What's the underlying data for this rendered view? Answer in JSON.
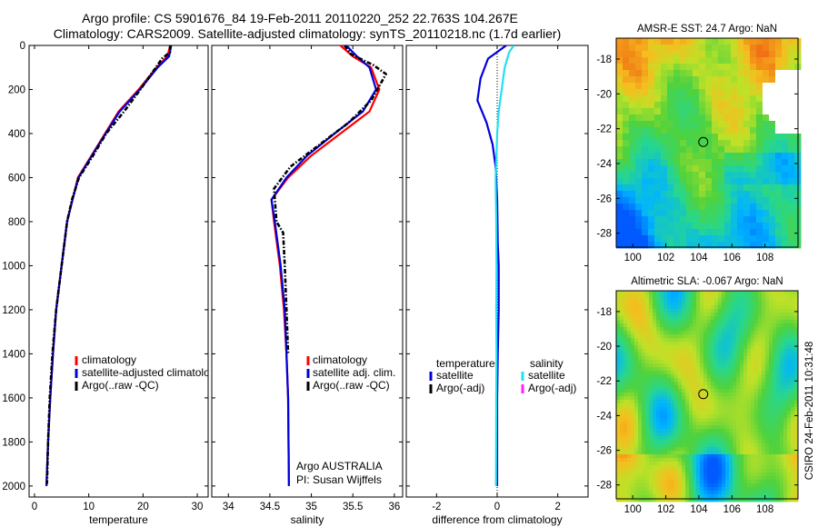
{
  "title": {
    "line1": "Argo profile: CS 5901676_84 19-Feb-2011 20110220_252 22.763S 104.267E",
    "line2": "Climatology: CARS2009. Satellite-adjusted climatology: synTS_20110218.nc (1.7d earlier)"
  },
  "stamp": "CSIRO 24-Feb-2011 10:31:48",
  "colors": {
    "climatology": "#ff0000",
    "satellite": "#0000dd",
    "argo": "#000000",
    "satellite_salinity": "#22e0f0",
    "argo_salinity_adj": "#ff22ff"
  },
  "chart_data": [
    {
      "type": "line",
      "name": "temperature-profile",
      "xlabel": "temperature",
      "ylabel": "",
      "xlim": [
        -1,
        32
      ],
      "ylim": [
        2050,
        0
      ],
      "xticks": [
        0,
        10,
        20,
        30
      ],
      "yticks": [
        0,
        200,
        400,
        600,
        800,
        1000,
        1200,
        1400,
        1600,
        1800,
        2000
      ],
      "series": [
        {
          "name": "climatology",
          "color": "#ff0000",
          "dash": "",
          "x": [
            25.0,
            24.5,
            22.5,
            19.2,
            15.5,
            13.0,
            10.5,
            8.0,
            7.0,
            6.0,
            5.0,
            4.0,
            3.4,
            2.9,
            2.5,
            2.2
          ],
          "y": [
            0,
            50,
            100,
            200,
            300,
            400,
            500,
            600,
            700,
            800,
            1000,
            1200,
            1400,
            1600,
            1800,
            2000
          ]
        },
        {
          "name": "satellite-adjusted climatology",
          "color": "#0000dd",
          "dash": "",
          "x": [
            25.2,
            24.8,
            22.7,
            19.4,
            15.7,
            13.1,
            10.6,
            8.1,
            7.0,
            6.0,
            5.0,
            4.0,
            3.4,
            2.9,
            2.5,
            2.2
          ],
          "y": [
            0,
            50,
            100,
            200,
            300,
            400,
            500,
            600,
            700,
            800,
            1000,
            1200,
            1400,
            1600,
            1800,
            2000
          ]
        },
        {
          "name": "Argo(..raw -QC)",
          "color": "#000000",
          "dash": "5,2,1.5,2",
          "x": [
            25.0,
            25.0,
            23.5,
            21.8,
            19.5,
            16.5,
            13.2,
            10.8,
            8.2,
            6.9,
            6.0,
            5.0,
            4.0,
            3.3,
            2.8,
            2.5,
            2.3
          ],
          "y": [
            0,
            30,
            60,
            120,
            200,
            300,
            400,
            500,
            600,
            700,
            800,
            1000,
            1200,
            1400,
            1600,
            1800,
            1990
          ]
        }
      ],
      "legend": [
        "climatology",
        "satellite-adjusted climatology",
        "Argo(..raw -QC)"
      ]
    },
    {
      "type": "line",
      "name": "salinity-profile",
      "xlabel": "salinity",
      "ylabel": "",
      "xlim": [
        33.8,
        36.1
      ],
      "ylim": [
        2050,
        0
      ],
      "xticks": [
        34,
        34.5,
        35,
        35.5,
        36
      ],
      "annotations": [
        "Argo AUSTRALIA",
        "PI: Susan Wijffels"
      ],
      "series": [
        {
          "name": "climatology",
          "color": "#ff0000",
          "dash": "",
          "x": [
            35.35,
            35.5,
            35.72,
            35.82,
            35.7,
            35.35,
            35.0,
            34.72,
            34.52,
            34.55,
            34.62,
            34.67,
            34.7,
            34.72,
            34.73
          ],
          "y": [
            0,
            50,
            100,
            200,
            300,
            400,
            500,
            600,
            700,
            800,
            1000,
            1200,
            1400,
            1600,
            2000
          ]
        },
        {
          "name": "satellite adj. clim.",
          "color": "#0000dd",
          "dash": "",
          "x": [
            35.42,
            35.55,
            35.7,
            35.78,
            35.62,
            35.28,
            34.95,
            34.7,
            34.52,
            34.56,
            34.63,
            34.68,
            34.7,
            34.72,
            34.73
          ],
          "y": [
            0,
            50,
            100,
            200,
            300,
            400,
            500,
            600,
            700,
            800,
            1000,
            1200,
            1400,
            1600,
            2000
          ]
        },
        {
          "name": "Argo(..raw -QC)",
          "color": "#000000",
          "dash": "5,2,1.5,2",
          "x": [
            35.4,
            35.48,
            35.75,
            35.9,
            35.72,
            35.45,
            35.1,
            34.75,
            34.55,
            34.58,
            34.66,
            34.68,
            34.7,
            34.72
          ],
          "y": [
            0,
            40,
            90,
            130,
            250,
            350,
            450,
            550,
            650,
            800,
            850,
            1000,
            1200,
            1400
          ]
        }
      ],
      "legend": [
        "climatology",
        "satellite adj. clim.",
        "Argo(..raw -QC)"
      ]
    },
    {
      "type": "line",
      "name": "difference-profile",
      "xlabel": "difference from climatology",
      "ylabel": "",
      "xlim": [
        -3,
        3
      ],
      "ylim": [
        2050,
        0
      ],
      "xticks": [
        -2,
        0,
        2
      ],
      "zero_line": true,
      "legend_headers": [
        "temperature",
        "salinity"
      ],
      "series": [
        {
          "name": "satellite",
          "group": "temperature",
          "color": "#0000dd",
          "dash": "",
          "x": [
            0.3,
            -0.3,
            -0.55,
            -0.65,
            -0.35,
            -0.15,
            -0.05,
            0,
            0.02,
            0.05,
            0.05,
            0.02,
            0,
            0
          ],
          "y": [
            0,
            60,
            150,
            250,
            350,
            450,
            550,
            700,
            900,
            1000,
            1200,
            1400,
            1600,
            2000
          ]
        },
        {
          "name": "satellite",
          "group": "salinity",
          "color": "#22e0f0",
          "dash": "",
          "x": [
            0.55,
            0.4,
            0.25,
            0.15,
            0.05,
            0,
            -0.02,
            -0.05,
            -0.03,
            -0.02,
            -0.03,
            -0.02,
            -0.03,
            -0.04
          ],
          "y": [
            0,
            30,
            100,
            200,
            300,
            400,
            500,
            600,
            800,
            1000,
            1200,
            1400,
            1600,
            2000
          ]
        }
      ],
      "legend": [
        {
          "label": "satellite",
          "group": "temperature"
        },
        {
          "label": "Argo(-adj)",
          "group": "temperature"
        },
        {
          "label": "satellite",
          "group": "salinity"
        },
        {
          "label": "Argo(-adj)",
          "group": "salinity"
        }
      ]
    },
    {
      "type": "heatmap",
      "name": "sst-map",
      "title": "AMSR-E SST: 24.7  Argo: NaN",
      "xlim": [
        99,
        110
      ],
      "ylim": [
        -28.8,
        -16.8
      ],
      "xticks": [
        100,
        102,
        104,
        106,
        108
      ],
      "yticks": [
        -18,
        -20,
        -22,
        -24,
        -26,
        -28
      ],
      "marker": {
        "lon": 104.267,
        "lat": -22.763
      }
    },
    {
      "type": "heatmap",
      "name": "sla-map",
      "title": "Altimetric SLA: -0.067  Argo: NaN",
      "xlim": [
        99,
        110
      ],
      "ylim": [
        -28.8,
        -16.8
      ],
      "xticks": [
        100,
        102,
        104,
        106,
        108
      ],
      "yticks": [
        -18,
        -20,
        -22,
        -24,
        -26,
        -28
      ],
      "marker": {
        "lon": 104.267,
        "lat": -22.763
      }
    }
  ]
}
